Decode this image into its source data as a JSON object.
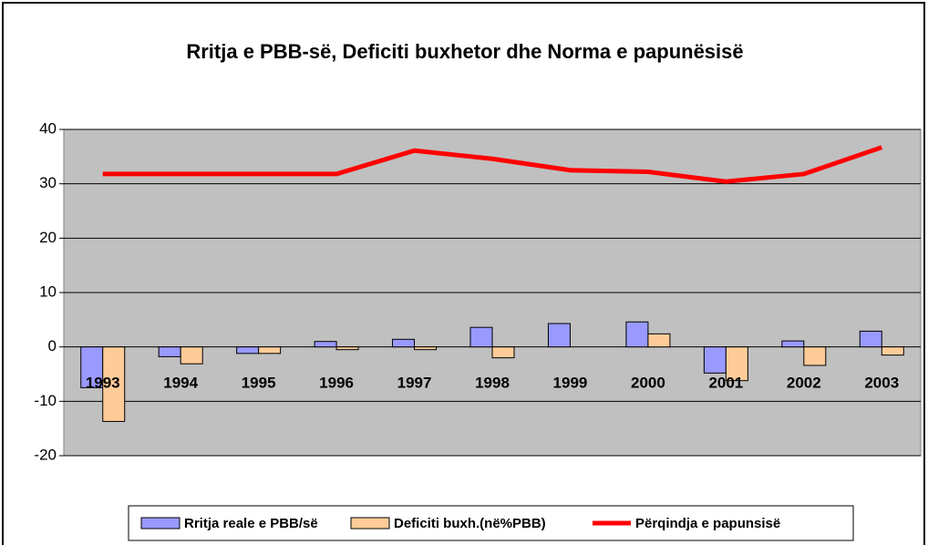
{
  "chart_data": {
    "type": "bar",
    "title": "Rritja e PBB-së, Deficiti buxhetor dhe Norma e papunësisë",
    "categories": [
      "1993",
      "1994",
      "1995",
      "1996",
      "1997",
      "1998",
      "1999",
      "2000",
      "2001",
      "2002",
      "2003"
    ],
    "series": [
      {
        "name": "Rritja reale e PBB/së",
        "type": "bar",
        "color": "#9999ff",
        "values": [
          -7.5,
          -1.8,
          -1.2,
          1.0,
          1.4,
          3.6,
          4.3,
          4.6,
          -4.8,
          1.1,
          2.9
        ]
      },
      {
        "name": "Deficiti buxh.(në%PBB)",
        "type": "bar",
        "color": "#ffcc99",
        "values": [
          -13.7,
          -3.1,
          -1.2,
          -0.5,
          -0.5,
          -2.0,
          0,
          2.4,
          -6.2,
          -3.4,
          -1.5
        ]
      },
      {
        "name": "Përqindja e papunsisë",
        "type": "line",
        "color": "#ff0000",
        "values": [
          31.8,
          31.8,
          31.8,
          31.8,
          36.1,
          34.6,
          32.5,
          32.2,
          30.4,
          31.8,
          36.7
        ]
      }
    ],
    "ylim": [
      -20,
      40
    ],
    "yticks": [
      -20,
      -10,
      0,
      10,
      20,
      30,
      40
    ],
    "grid": true
  }
}
